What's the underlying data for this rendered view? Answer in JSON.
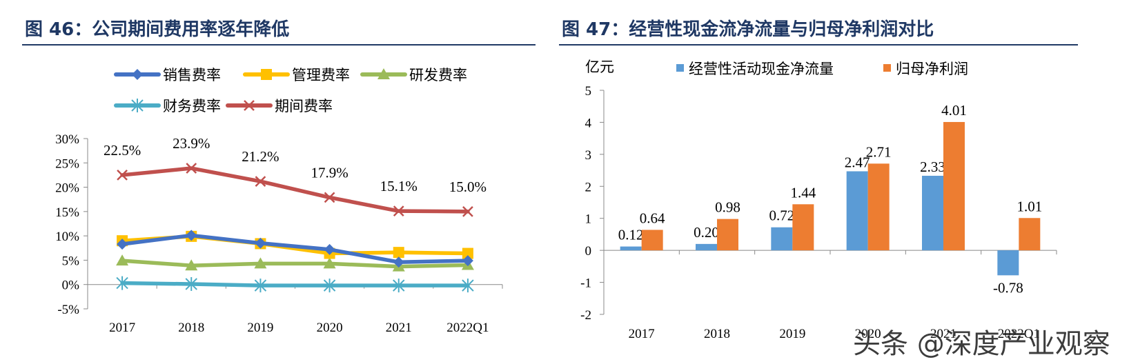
{
  "left_panel": {
    "title": "图 46：公司期间费用率逐年降低"
  },
  "right_panel": {
    "title": "图 47：经营性现金流净流量与归母净利润对比",
    "unit_label": "亿元"
  },
  "watermark": "头条 @深度产业观察",
  "chart_data": [
    {
      "type": "line",
      "categories": [
        "2017",
        "2018",
        "2019",
        "2020",
        "2021",
        "2022Q1"
      ],
      "y_ticks": [
        "30%",
        "25%",
        "20%",
        "15%",
        "10%",
        "5%",
        "0%",
        "-5%"
      ],
      "ylim": [
        -5,
        30
      ],
      "series": [
        {
          "name": "销售费率",
          "values": [
            8.3,
            10.1,
            8.5,
            7.2,
            4.6,
            4.9
          ],
          "color": "#4472c4",
          "marker": "diamond"
        },
        {
          "name": "管理费率",
          "values": [
            9.0,
            9.9,
            8.4,
            6.4,
            6.6,
            6.4
          ],
          "color": "#ffc000",
          "marker": "square"
        },
        {
          "name": "研发费率",
          "values": [
            4.9,
            3.9,
            4.3,
            4.3,
            3.7,
            4.0
          ],
          "color": "#9bbb59",
          "marker": "triangle"
        },
        {
          "name": "财务费率",
          "values": [
            0.3,
            0.1,
            -0.2,
            -0.2,
            -0.2,
            -0.2
          ],
          "color": "#4bacc6",
          "marker": "asterisk"
        },
        {
          "name": "期间费率",
          "values": [
            22.5,
            23.9,
            21.2,
            17.9,
            15.1,
            15.0
          ],
          "color": "#c0504d",
          "marker": "x"
        }
      ],
      "data_labels": [
        "22.5%",
        "23.9%",
        "21.2%",
        "17.9%",
        "15.1%",
        "15.0%"
      ]
    },
    {
      "type": "bar",
      "categories": [
        "2017",
        "2018",
        "2019",
        "2020",
        "2021",
        "2022Q1"
      ],
      "y_ticks": [
        "5",
        "4",
        "3",
        "2",
        "1",
        "0",
        "-1",
        "-2"
      ],
      "ylim": [
        -2,
        5
      ],
      "ylabel": "亿元",
      "series": [
        {
          "name": "经营性活动现金净流量",
          "values": [
            0.12,
            0.2,
            0.72,
            2.47,
            2.33,
            -0.78
          ],
          "labels": [
            "0.12",
            "0.20",
            "0.72",
            "2.47",
            "2.33",
            "-0.78"
          ],
          "color": "#5b9bd5"
        },
        {
          "name": "归母净利润",
          "values": [
            0.64,
            0.98,
            1.44,
            2.71,
            4.01,
            1.01
          ],
          "labels": [
            "0.64",
            "0.98",
            "1.44",
            "2.71",
            "4.01",
            "1.01"
          ],
          "color": "#ed7d31"
        }
      ]
    }
  ]
}
